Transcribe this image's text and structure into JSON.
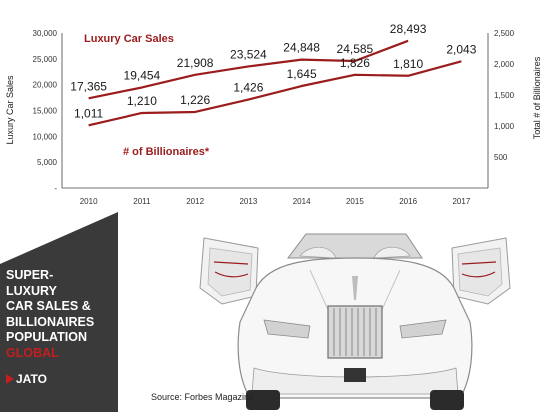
{
  "chart_data": {
    "type": "line",
    "categories": [
      "2010",
      "2011",
      "2012",
      "2013",
      "2014",
      "2015",
      "2016",
      "2017"
    ],
    "series": [
      {
        "name": "Luxury Car Sales",
        "axis": "left",
        "values": [
          17365,
          19454,
          21908,
          23524,
          24848,
          24585,
          28493,
          null
        ],
        "labels": [
          "17,365",
          "19,454",
          "21,908",
          "23,524",
          "24,848",
          "24,585",
          "28,493",
          ""
        ]
      },
      {
        "name": "# of Billionaires*",
        "axis": "right",
        "values": [
          1011,
          1210,
          1226,
          1426,
          1645,
          1826,
          1810,
          2043
        ],
        "labels": [
          "1,011",
          "1,210",
          "1,226",
          "1,426",
          "1,645",
          "1,826",
          "1,810",
          "2,043"
        ]
      }
    ],
    "ylabel": "Luxury Car Sales",
    "y2label": "Total # of Billionaires",
    "ylim": [
      0,
      30000
    ],
    "y2lim": [
      0,
      2500
    ],
    "yticks": [
      "-",
      "5,000",
      "10,000",
      "15,000",
      "20,000",
      "25,000",
      "30,000"
    ],
    "y2ticks": [
      "500",
      "1,000",
      "1,500",
      "2,000",
      "2,500"
    ],
    "grid": false,
    "line_color": "#9b1c1c"
  },
  "panel": {
    "title_lines": [
      "SUPER-",
      "LUXURY",
      "CAR SALES &",
      "BILLIONAIRES",
      "POPULATION"
    ],
    "subtitle": "GLOBAL",
    "logo": "JATO"
  },
  "source": "Source: Forbes Magazine",
  "icons": {
    "car": "luxury-convertible-car-image"
  }
}
